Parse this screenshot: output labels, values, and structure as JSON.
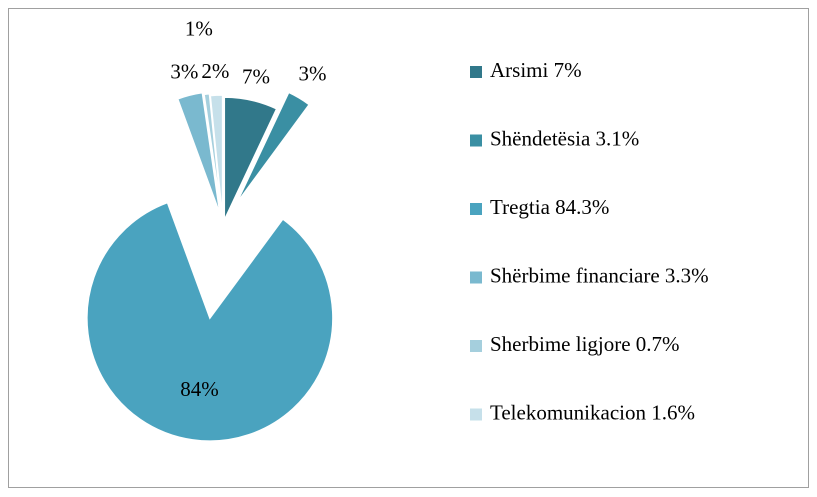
{
  "chart_data": {
    "type": "pie",
    "categories": [
      "Arsimi 7%",
      "Shëndetësia 3.1%",
      "Tregtia 84.3%",
      "Shërbime financiare 3.3%",
      "Sherbime ligjore 0.7%",
      "Telekomunikacion 1.6%"
    ],
    "values": [
      7,
      3.1,
      84.3,
      3.3,
      0.7,
      1.6
    ],
    "value_labels": [
      "7%",
      "3%",
      "84%",
      "3%",
      "1%",
      "2%"
    ],
    "colors": [
      "#31788a",
      "#3a8fa3",
      "#4aa3bf",
      "#7ab9cf",
      "#a5cfdd",
      "#c6e0ea"
    ],
    "legend": "right"
  }
}
